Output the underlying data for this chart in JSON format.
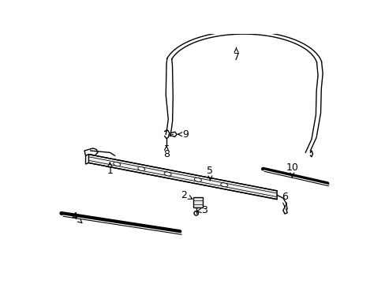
{
  "background_color": "#ffffff",
  "line_color": "#000000",
  "fig_width": 4.89,
  "fig_height": 3.6,
  "dpi": 100,
  "cable_color": "#000000",
  "track_color": "#000000"
}
